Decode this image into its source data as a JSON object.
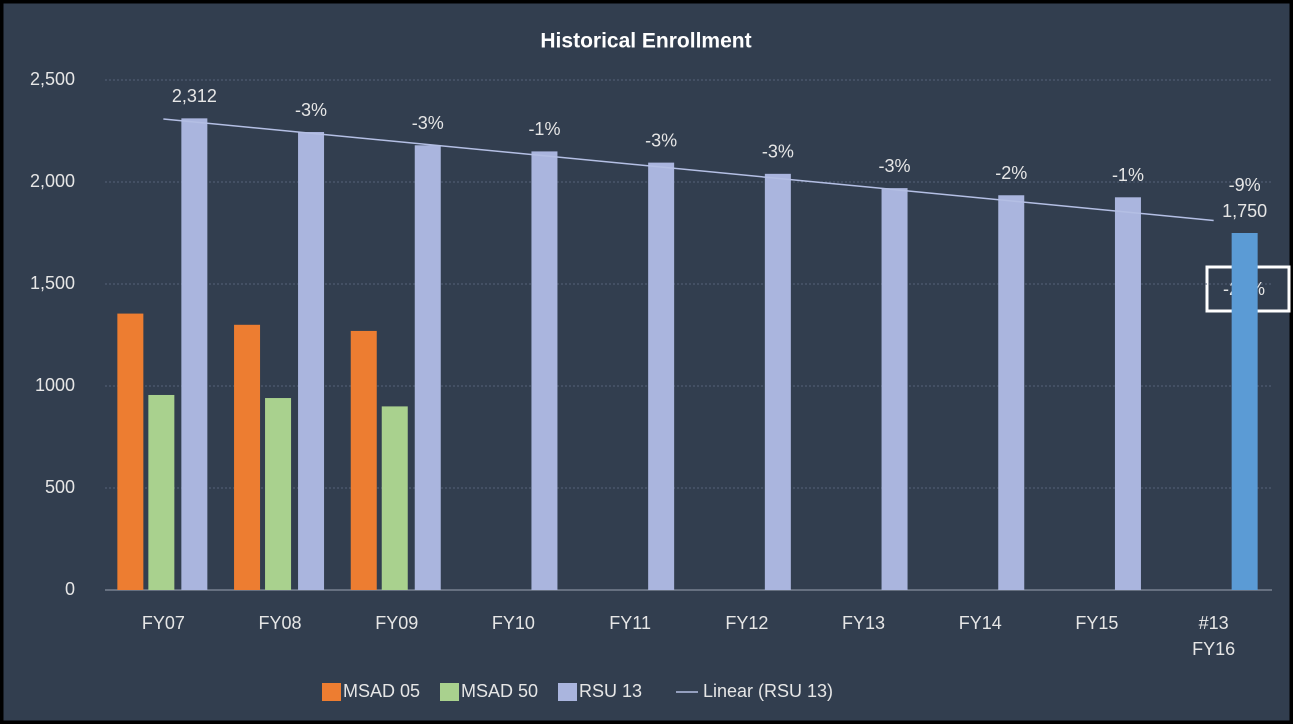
{
  "chart_data": {
    "type": "bar",
    "title": "Historical Enrollment",
    "categories": [
      "FY07",
      "FY08",
      "FY09",
      "FY10",
      "FY11",
      "FY12",
      "FY13",
      "FY14",
      "FY15",
      "#13\nFY16"
    ],
    "series": [
      {
        "name": "MSAD 05",
        "color": "#ed7d31",
        "values": [
          1355,
          1300,
          1270,
          null,
          null,
          null,
          null,
          null,
          null,
          null
        ]
      },
      {
        "name": "MSAD 50",
        "color": "#a9d18e",
        "values": [
          956,
          941,
          900,
          null,
          null,
          null,
          null,
          null,
          null,
          null
        ]
      },
      {
        "name": "RSU 13",
        "color": "#aab5de",
        "values": [
          2312,
          2245,
          2180,
          2150,
          2095,
          2040,
          1970,
          1935,
          1925,
          1750
        ],
        "point_colors": [
          "#aab5de",
          "#aab5de",
          "#aab5de",
          "#aab5de",
          "#aab5de",
          "#aab5de",
          "#aab5de",
          "#aab5de",
          "#aab5de",
          "#5b9bd5"
        ],
        "value_labels": [
          "2,312",
          null,
          null,
          null,
          null,
          null,
          null,
          null,
          null,
          "1,750"
        ],
        "change_labels": [
          null,
          "-3%",
          "-3%",
          "-1%",
          "-3%",
          "-3%",
          "-3%",
          "-2%",
          "-1%",
          "-9%"
        ]
      }
    ],
    "trendline": {
      "name": "Linear (RSU 13)",
      "color": "#b4bfe4",
      "series": 2
    },
    "annotation": "-24%",
    "ylim": [
      0,
      2500
    ],
    "yticks": [
      0,
      500,
      1000,
      {
        "value": 1500,
        "label": "1,500"
      },
      {
        "value": 2000,
        "label": "2,000"
      },
      {
        "value": 2500,
        "label": "2,500"
      }
    ],
    "grid": true
  }
}
